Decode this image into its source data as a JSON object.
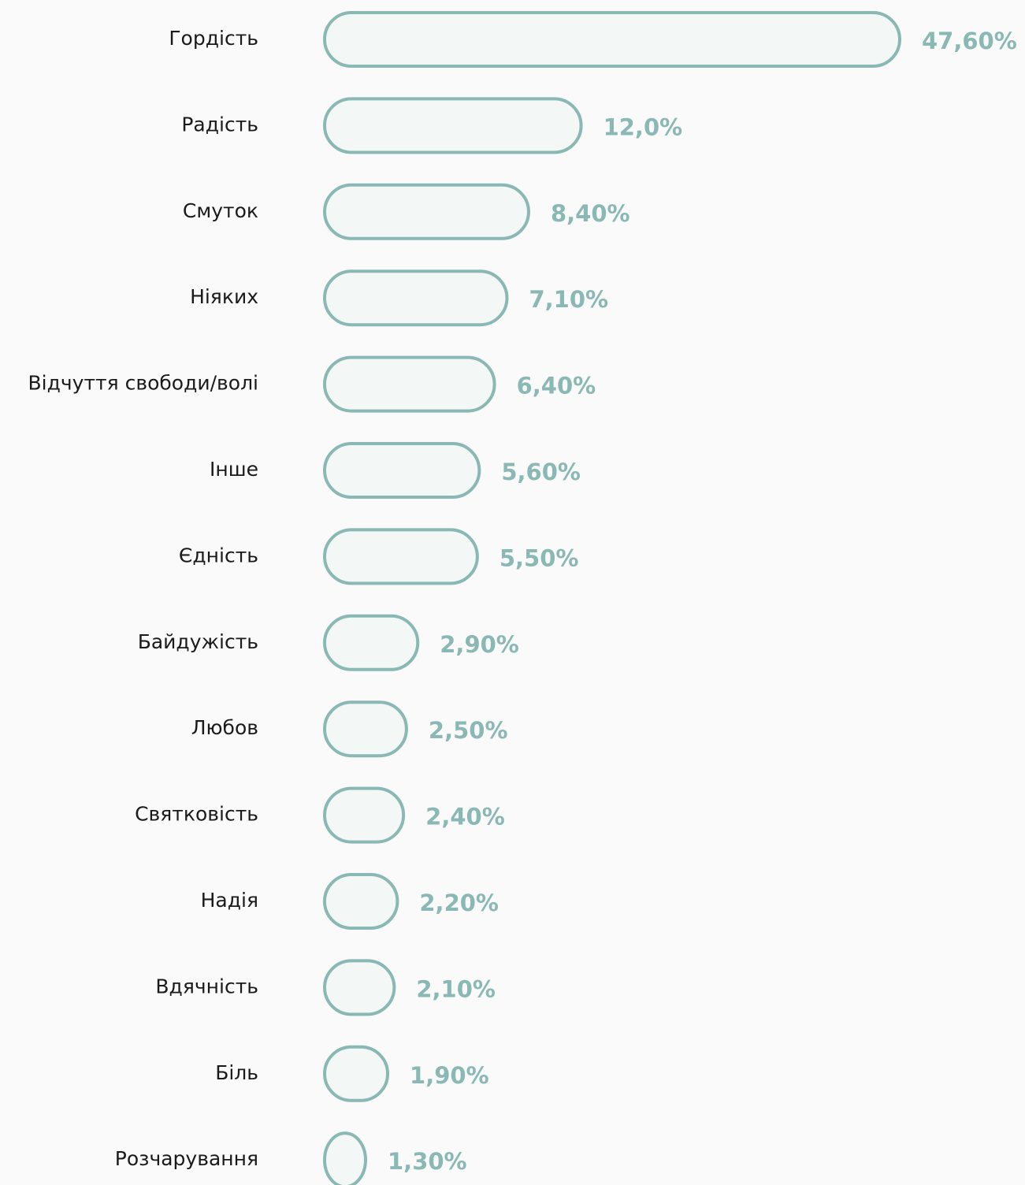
{
  "chart_data": {
    "type": "bar",
    "orientation": "horizontal",
    "categories": [
      "Гордість",
      "Радість",
      "Смуток",
      "Ніяких",
      "Відчуття свободи/волі",
      "Інше",
      "Єдність",
      "Байдужість",
      "Любов",
      "Святковість",
      "Надія",
      "Вдячність",
      "Біль",
      "Розчарування"
    ],
    "values": [
      47.6,
      12.0,
      8.4,
      7.1,
      6.4,
      5.6,
      5.5,
      2.9,
      2.5,
      2.4,
      2.2,
      2.1,
      1.9,
      1.3
    ],
    "value_labels": [
      "47,60%",
      "12,0%",
      "8,40%",
      "7,10%",
      "6,40%",
      "5,60%",
      "5,50%",
      "2,90%",
      "2,50%",
      "2,40%",
      "2,20%",
      "2,10%",
      "1,90%",
      "1,30%"
    ],
    "color": "#8ab8b4"
  }
}
